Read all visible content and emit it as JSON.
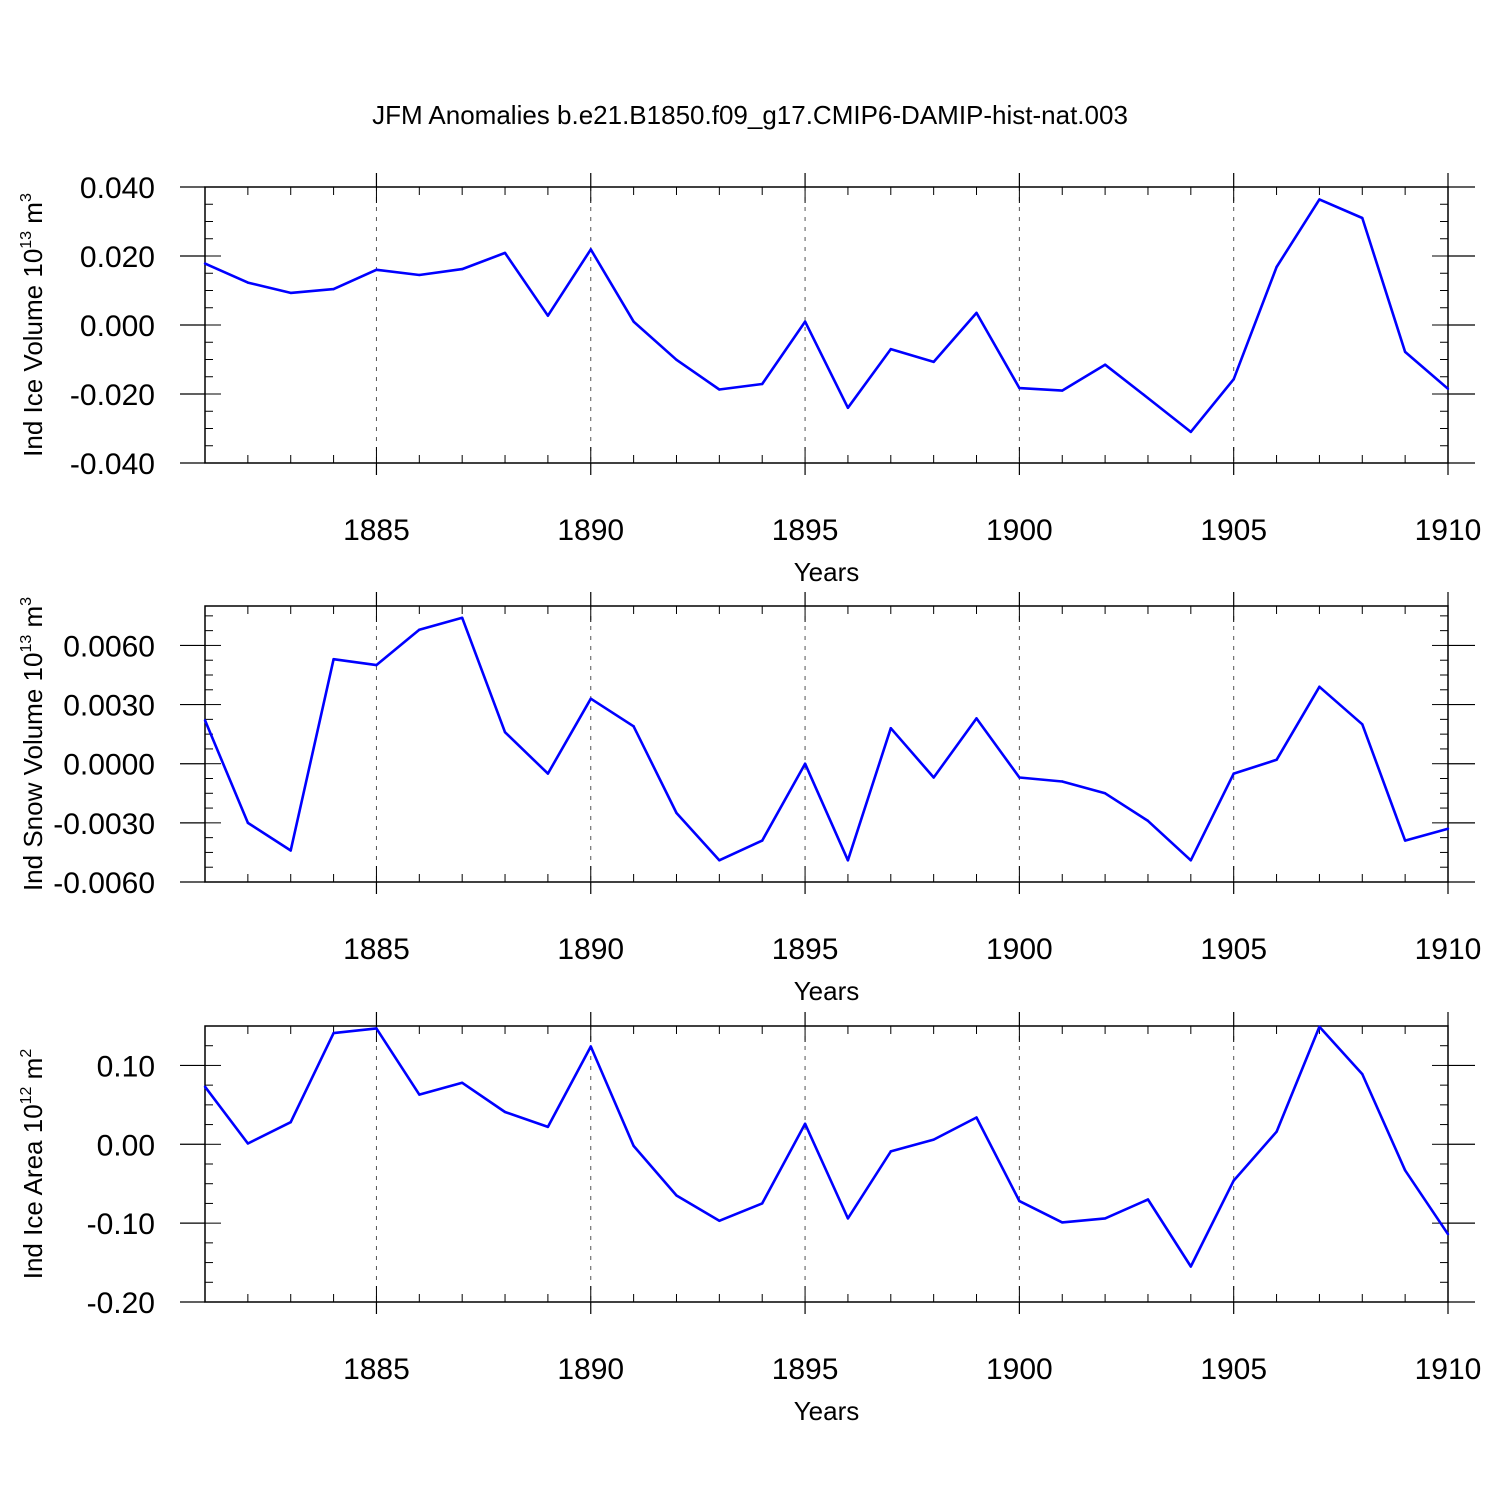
{
  "title": "JFM Anomalies b.e21.B1850.f09_g17.CMIP6-DAMIP-hist-nat.003",
  "colors": {
    "line": "#0000ff",
    "axis": "#000000",
    "grid": "#555555"
  },
  "chart_data": [
    {
      "type": "line",
      "xlabel": "Years",
      "ylabel": {
        "prefix": "Ind Ice Volume 10",
        "exp": "13",
        "unit": " m",
        "unit_exp": "3"
      },
      "xlim": [
        1881,
        1910
      ],
      "ylim": [
        -0.04,
        0.04
      ],
      "yticks": [
        -0.04,
        -0.02,
        0.0,
        0.02,
        0.04
      ],
      "ytick_labels": [
        "-0.040",
        "-0.020",
        "0.000",
        "0.020",
        "0.040"
      ],
      "xticks": [
        1885,
        1890,
        1895,
        1900,
        1905,
        1910
      ],
      "xtick_labels": [
        "1885",
        "1890",
        "1895",
        "1900",
        "1905",
        "1910"
      ],
      "grid": "vertical-dashed",
      "x": [
        1881,
        1882,
        1883,
        1884,
        1885,
        1886,
        1887,
        1888,
        1889,
        1890,
        1891,
        1892,
        1893,
        1894,
        1895,
        1896,
        1897,
        1898,
        1899,
        1900,
        1901,
        1902,
        1903,
        1904,
        1905,
        1906,
        1907,
        1908,
        1909,
        1910
      ],
      "values": [
        0.0178,
        0.0123,
        0.0093,
        0.0104,
        0.016,
        0.0145,
        0.0162,
        0.0209,
        0.0027,
        0.0219,
        0.001,
        -0.0101,
        -0.0187,
        -0.0171,
        0.001,
        -0.024,
        -0.007,
        -0.0107,
        0.0035,
        -0.0183,
        -0.019,
        -0.0115,
        -0.0212,
        -0.031,
        -0.0157,
        0.0168,
        0.0364,
        0.031,
        -0.0078,
        -0.0185
      ]
    },
    {
      "type": "line",
      "xlabel": "Years",
      "ylabel": {
        "prefix": "Ind Snow Volume 10",
        "exp": "13",
        "unit": " m",
        "unit_exp": "3"
      },
      "xlim": [
        1881,
        1910
      ],
      "ylim": [
        -0.006,
        0.008
      ],
      "yticks": [
        -0.006,
        -0.003,
        0.0,
        0.003,
        0.006
      ],
      "ytick_labels": [
        "-0.0060",
        "-0.0030",
        "0.0000",
        "0.0030",
        "0.0060"
      ],
      "xticks": [
        1885,
        1890,
        1895,
        1900,
        1905,
        1910
      ],
      "xtick_labels": [
        "1885",
        "1890",
        "1895",
        "1900",
        "1905",
        "1910"
      ],
      "grid": "vertical-dashed",
      "x": [
        1881,
        1882,
        1883,
        1884,
        1885,
        1886,
        1887,
        1888,
        1889,
        1890,
        1891,
        1892,
        1893,
        1894,
        1895,
        1896,
        1897,
        1898,
        1899,
        1900,
        1901,
        1902,
        1903,
        1904,
        1905,
        1906,
        1907,
        1908,
        1909,
        1910
      ],
      "values": [
        0.0022,
        -0.003,
        -0.0044,
        0.0053,
        0.005,
        0.0068,
        0.0074,
        0.0016,
        -0.0005,
        0.0033,
        0.0019,
        -0.0025,
        -0.0049,
        -0.0039,
        0.0,
        -0.0049,
        0.0018,
        -0.0007,
        0.0023,
        -0.0007,
        -0.0009,
        -0.0015,
        -0.0029,
        -0.0049,
        -0.0005,
        0.0002,
        0.0039,
        0.002,
        -0.0039,
        -0.0033
      ]
    },
    {
      "type": "line",
      "xlabel": "Years",
      "ylabel": {
        "prefix": "Ind Ice Area 10",
        "exp": "12",
        "unit": " m",
        "unit_exp": "2"
      },
      "xlim": [
        1881,
        1910
      ],
      "ylim": [
        -0.2,
        0.15
      ],
      "yticks": [
        -0.2,
        -0.1,
        0.0,
        0.1
      ],
      "ytick_labels": [
        "-0.20",
        "-0.10",
        "0.00",
        "0.10"
      ],
      "xticks": [
        1885,
        1890,
        1895,
        1900,
        1905,
        1910
      ],
      "xtick_labels": [
        "1885",
        "1890",
        "1895",
        "1900",
        "1905",
        "1910"
      ],
      "grid": "vertical-dashed",
      "x": [
        1881,
        1882,
        1883,
        1884,
        1885,
        1886,
        1887,
        1888,
        1889,
        1890,
        1891,
        1892,
        1893,
        1894,
        1895,
        1896,
        1897,
        1898,
        1899,
        1900,
        1901,
        1902,
        1903,
        1904,
        1905,
        1906,
        1907,
        1908,
        1909,
        1910
      ],
      "values": [
        0.073,
        0.001,
        0.028,
        0.141,
        0.147,
        0.063,
        0.078,
        0.041,
        0.022,
        0.124,
        -0.002,
        -0.065,
        -0.097,
        -0.075,
        0.026,
        -0.094,
        -0.009,
        0.006,
        0.034,
        -0.072,
        -0.099,
        -0.094,
        -0.07,
        -0.155,
        -0.046,
        0.016,
        0.149,
        0.089,
        -0.033,
        -0.114
      ]
    }
  ]
}
